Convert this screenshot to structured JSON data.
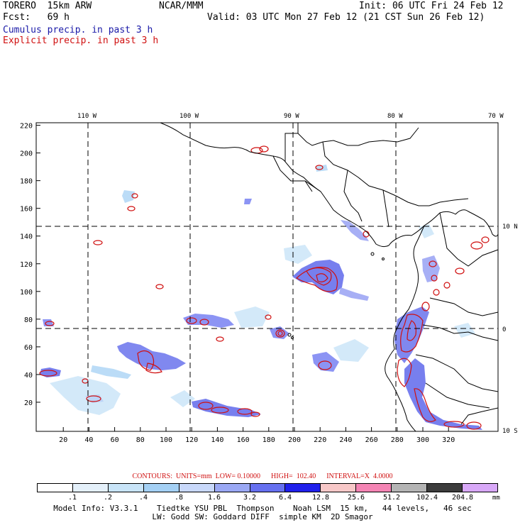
{
  "header": {
    "model": "TORERO  15km ARW",
    "center": "NCAR/MMM",
    "init": "Init: 06 UTC Fri 24 Feb 12",
    "fcst": "Fcst:   69 h",
    "valid": "Valid: 03 UTC Mon 27 Feb 12 (21 CST Sun 26 Feb 12)",
    "cumulus_label": "Cumulus precip. in past 3 h",
    "explicit_label": "Explicit precip. in past 3 h"
  },
  "colors": {
    "cumulus": "#1a1aa8",
    "explicit": "#d01010",
    "coast": "#000000"
  },
  "map": {
    "lon_labels": [
      "110 W",
      "100 W",
      "90 W",
      "80 W",
      "70 W"
    ],
    "lat_labels": [
      "10 N",
      "0",
      "10 S"
    ],
    "x_ticks": [
      "20",
      "40",
      "60",
      "80",
      "100",
      "120",
      "140",
      "160",
      "180",
      "200",
      "220",
      "240",
      "260",
      "280",
      "300",
      "320"
    ],
    "y_ticks": [
      "20",
      "40",
      "60",
      "80",
      "100",
      "120",
      "140",
      "160",
      "180",
      "200",
      "220"
    ],
    "grid_lines": "dashed lat/lon at 10 degree intervals"
  },
  "contour_info": {
    "text": "CONTOURS:  UNITS=mm  LOW= 0.10000      HIGH=  102.40      INTERVAL=X  4.0000"
  },
  "legend": {
    "labels": [
      ".1",
      ".2",
      ".4",
      ".8",
      "1.6",
      "3.2",
      "6.4",
      "12.8",
      "25.6",
      "51.2",
      "102.4",
      "204.8"
    ],
    "colors": [
      "#ffffff",
      "#e4f0fa",
      "#c8e4f8",
      "#a4d0f4",
      "#c8d8fa",
      "#9aa8f4",
      "#6670f0",
      "#2020ec",
      "#f8c8c8",
      "#f484b4",
      "#b4b4b4",
      "#3c3c3c",
      "#d8a8f8"
    ],
    "units": "mm"
  },
  "footer": {
    "line1": "Model Info: V3.3.1    Tiedtke YSU PBL  Thompson    Noah LSM  15 km,   44 levels,   46 sec",
    "line2": "LW: Godd SW: Goddard DIFF  simple KM  2D Smagor"
  }
}
